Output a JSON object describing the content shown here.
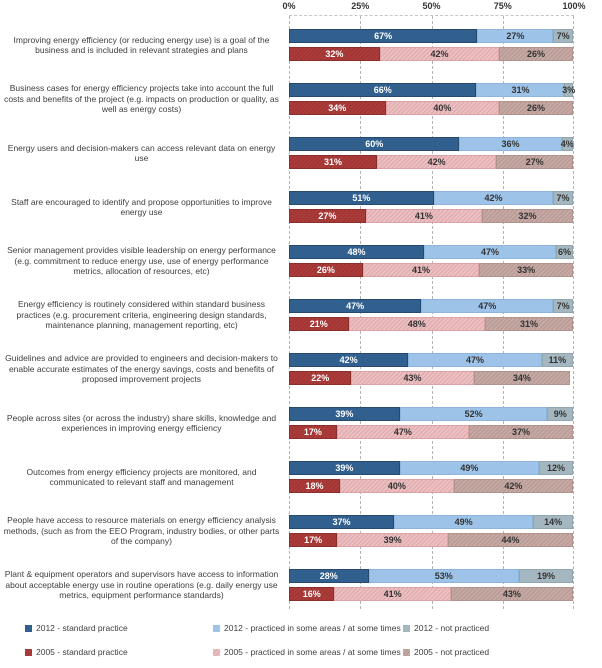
{
  "chart_data": {
    "type": "bar",
    "orientation": "horizontal_stacked",
    "title": "",
    "axis": {
      "position": "top",
      "range": [
        0,
        100
      ],
      "tick_labels": [
        "0%",
        "25%",
        "50%",
        "75%",
        "100%"
      ],
      "gridlines": "dashed-vertical"
    },
    "categories": [
      "Improving energy efficiency (or reducing energy use) is a goal of the business and is included in relevant strategies and plans",
      "Business cases for energy efficiency projects take into account the full costs and benefits of the project (e.g. impacts on production or quality, as well as energy costs)",
      "Energy users and decision-makers can access relevant data on energy use",
      "Staff are encouraged to identify and propose opportunities to improve energy use",
      "Senior management provides visible leadership on energy performance (e.g. commitment to reduce energy use, use of energy performance metrics, allocation of resources, etc)",
      "Energy efficiency is routinely considered within standard business practices (e.g. procurement criteria, engineering design standards, maintenance planning, management reporting, etc)",
      "Guidelines and advice are provided to engineers and decision-makers to enable accurate estimates of the energy savings, costs and benefits of proposed improvement projects",
      "People across sites (or across the industry) share skills, knowledge and experiences in improving energy efficiency",
      "Outcomes from energy efficiency projects are monitored, and communicated to relevant staff and management",
      "People have access to resource materials on energy efficiency analysis methods, (such as from the EEO Program, industry bodies, or other parts of the company)",
      "Plant & equipment operators and supervisors have access to information about acceptable energy use in routine operations (e.g. daily energy use metrics, equipment performance standards)"
    ],
    "series": [
      {
        "key": "2012-standard",
        "name": "2012 - standard practice",
        "color": "#31608F",
        "border": "#26496E",
        "label_color": "#FFFFFF",
        "pattern": "solid",
        "values": [
          67,
          66,
          60,
          51,
          48,
          47,
          42,
          39,
          39,
          37,
          28
        ]
      },
      {
        "key": "2012-some",
        "name": "2012 - practiced in some areas / at some times",
        "color": "#9EC3E8",
        "border": "#8FB4DC",
        "label_color": "#333333",
        "pattern": "solid",
        "values": [
          27,
          31,
          36,
          42,
          47,
          47,
          47,
          52,
          49,
          49,
          53
        ]
      },
      {
        "key": "2012-not",
        "name": "2012 - not practiced",
        "color": "#A4B6BF",
        "border": "#92A6B0",
        "label_color": "#333333",
        "pattern": "solid",
        "values": [
          7,
          3,
          4,
          7,
          6,
          7,
          11,
          9,
          12,
          14,
          19
        ]
      },
      {
        "key": "2005-standard",
        "name": "2005 - standard practice",
        "color": "#AC3B39",
        "border": "#8B2F2D",
        "label_color": "#FFFFFF",
        "pattern": "hatch",
        "values": [
          32,
          34,
          31,
          27,
          26,
          21,
          22,
          17,
          18,
          17,
          16
        ]
      },
      {
        "key": "2005-some",
        "name": "2005 - practiced in some areas / at some times",
        "color": "#EFBEC1",
        "border": "#DBA3A8",
        "label_color": "#333333",
        "pattern": "hatch",
        "values": [
          42,
          40,
          42,
          41,
          41,
          48,
          43,
          47,
          40,
          39,
          41
        ]
      },
      {
        "key": "2005-not",
        "name": "2005 - not practiced",
        "color": "#C7A9A4",
        "border": "#B2928D",
        "label_color": "#333333",
        "pattern": "hatch",
        "values": [
          26,
          26,
          27,
          32,
          33,
          31,
          34,
          37,
          42,
          44,
          43
        ]
      }
    ],
    "value_label_format": "{v}%",
    "legend": {
      "position": "bottom",
      "layout": "3-columns-2-rows"
    }
  }
}
